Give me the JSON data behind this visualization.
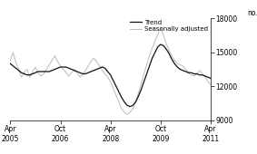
{
  "title": "",
  "ylabel": "no.",
  "ylim": [
    9000,
    18000
  ],
  "yticks": [
    9000,
    12000,
    15000,
    18000
  ],
  "background_color": "#ffffff",
  "trend_color": "#111111",
  "seasonal_color": "#bbbbbb",
  "trend_linewidth": 0.9,
  "seasonal_linewidth": 0.7,
  "legend_labels": [
    "Trend",
    "Seasonally adjusted"
  ],
  "x_tick_labels": [
    "Apr\n2005",
    "Oct\n2006",
    "Apr\n2008",
    "Oct\n2009",
    "Apr\n2011"
  ],
  "x_tick_positions": [
    0,
    18,
    36,
    54,
    72
  ],
  "trend_data": [
    14000,
    13800,
    13600,
    13400,
    13200,
    13100,
    13000,
    13000,
    13100,
    13200,
    13300,
    13300,
    13300,
    13300,
    13300,
    13400,
    13500,
    13600,
    13700,
    13700,
    13700,
    13600,
    13500,
    13400,
    13300,
    13200,
    13100,
    13100,
    13200,
    13300,
    13400,
    13500,
    13600,
    13700,
    13600,
    13300,
    13000,
    12500,
    12000,
    11500,
    11000,
    10600,
    10300,
    10200,
    10300,
    10600,
    11100,
    11700,
    12400,
    13100,
    13800,
    14500,
    15000,
    15500,
    15700,
    15600,
    15300,
    14900,
    14400,
    14000,
    13700,
    13500,
    13400,
    13300,
    13200,
    13200,
    13100,
    13100,
    13000,
    13000,
    12900,
    12800,
    12700
  ],
  "seasonal_data": [
    14300,
    15000,
    14100,
    13500,
    12800,
    13200,
    13500,
    12800,
    13300,
    13700,
    13200,
    12900,
    13100,
    13500,
    13900,
    14300,
    14700,
    14200,
    13800,
    13500,
    13200,
    12900,
    13200,
    13500,
    13200,
    12800,
    13000,
    13400,
    13800,
    14200,
    14500,
    14200,
    13800,
    13400,
    13100,
    12800,
    12400,
    11800,
    11200,
    10600,
    10000,
    9700,
    9500,
    9700,
    10000,
    10600,
    11400,
    12200,
    13100,
    13900,
    14700,
    15400,
    16000,
    16600,
    17200,
    16500,
    15800,
    15200,
    14700,
    14300,
    14000,
    13900,
    13800,
    13500,
    13200,
    13000,
    12900,
    13100,
    13400,
    13100,
    12800,
    12400,
    12100
  ]
}
